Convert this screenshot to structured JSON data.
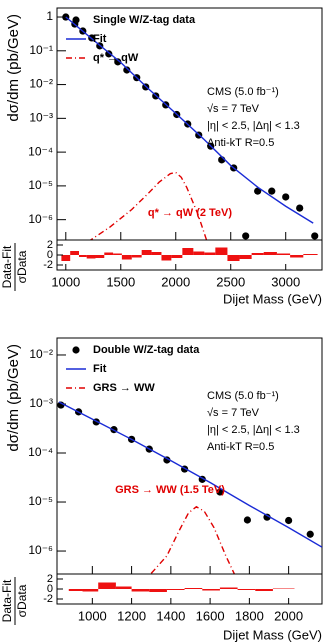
{
  "chart_data": [
    {
      "type": "scatter",
      "log_y": true,
      "ylabel": "dσ/dm (pb/GeV)",
      "xlim": [
        920,
        3330
      ],
      "xticks": [
        1000,
        1500,
        2000,
        2500,
        3000
      ],
      "ylim": [
        2.5e-07,
        1.85
      ],
      "yticks": [
        {
          "value": 1e-06,
          "label": "10⁻⁶"
        },
        {
          "value": 1e-05,
          "label": "10⁻⁵"
        },
        {
          "value": 0.0001,
          "label": "10⁻⁴"
        },
        {
          "value": 0.001,
          "label": "10⁻³"
        },
        {
          "value": 0.01,
          "label": "10⁻²"
        },
        {
          "value": 0.1,
          "label": "10⁻¹"
        },
        1
      ],
      "series": [
        {
          "name": "Single W/Z-tag data",
          "color": "#000000",
          "style": "markers",
          "x": [
            1000,
            1082,
            1155,
            1236,
            1309,
            1391,
            1473,
            1555,
            1645,
            1727,
            1818,
            1909,
            2009,
            2109,
            2209,
            2318,
            2418,
            2527,
            2636,
            2745,
            2873,
            3000,
            3127,
            3264
          ],
          "values": [
            1,
            0.62,
            0.385,
            0.24,
            0.14,
            0.081,
            0.047,
            0.027,
            0.016,
            0.0085,
            0.0046,
            0.0025,
            0.0013,
            0.00068,
            0.00032,
            0.00015,
            5.9e-05,
            3.4e-05,
            3.3e-07,
            7e-06,
            7e-06,
            4.7e-06,
            2.2e-06,
            3.3e-07
          ]
        },
        {
          "name": "Fit",
          "color": "#1a2bd6",
          "style": "solid",
          "x": [
            1000,
            1250,
            1500,
            1750,
            2000,
            2250,
            2500,
            2750,
            3000,
            3250
          ],
          "values": [
            1,
            0.21,
            0.045,
            0.0076,
            0.0014,
            0.00025,
            4e-05,
            8.9e-06,
            2.5e-06,
            7.9e-07
          ]
        },
        {
          "name": "q* → qW",
          "color": "#e00000",
          "style": "dashdot",
          "x": [
            1200,
            1400,
            1600,
            1750,
            1850,
            1950,
            2000,
            2050,
            2100,
            2200,
            2280
          ],
          "values": [
            2.2e-07,
            6e-07,
            2e-06,
            6e-06,
            1.3e-05,
            2.3e-05,
            2.5e-05,
            1.8e-05,
            9e-06,
            1.5e-06,
            2.5e-07
          ]
        }
      ],
      "annotations": [
        "CMS (5.0 fb⁻¹)",
        "√s = 7 TeV",
        "|η| < 2.5, |Δη| < 1.3",
        "Anti-kT R=0.5"
      ],
      "signal_label": "q* → qW (2 TeV)"
    },
    {
      "type": "histogram",
      "ylabel_numerator": "Data-Fit",
      "ylabel_denominator": "σData",
      "xlabel": "Dijet Mass (GeV)",
      "xlim": [
        920,
        3330
      ],
      "xticks": [
        1000,
        1500,
        2000,
        2500,
        3000
      ],
      "ylim": [
        -3,
        3
      ],
      "yticks": [
        -2,
        0,
        2
      ],
      "color": "#ee1111",
      "bins": [
        960,
        1040,
        1120,
        1190,
        1270,
        1350,
        1430,
        1510,
        1600,
        1690,
        1780,
        1870,
        1960,
        2060,
        2160,
        2260,
        2360,
        2470,
        2580,
        2690,
        2800,
        2920,
        3040,
        3160,
        3290
      ],
      "values": [
        -1.2,
        0.8,
        -0.4,
        -0.7,
        -0.6,
        0.5,
        0.3,
        -0.9,
        -0.5,
        1.0,
        0.6,
        -1.1,
        -0.6,
        1.4,
        0.7,
        0.5,
        1.5,
        -1.2,
        -0.8,
        0.4,
        0.6,
        0.3,
        -0.5,
        0.2
      ]
    },
    {
      "type": "scatter",
      "log_y": true,
      "ylabel": "dσ/dm (pb/GeV)",
      "xlim": [
        820,
        2170
      ],
      "xticks": [
        1000,
        1200,
        1400,
        1600,
        1800,
        2000
      ],
      "ylim": [
        3.4e-07,
        0.0222
      ],
      "yticks": [
        {
          "value": 1e-06,
          "label": "10⁻⁶"
        },
        {
          "value": 1e-05,
          "label": "10⁻⁵"
        },
        {
          "value": 0.0001,
          "label": "10⁻⁴"
        },
        {
          "value": 0.001,
          "label": "10⁻³"
        },
        {
          "value": 0.01,
          "label": "10⁻²"
        }
      ],
      "series": [
        {
          "name": "Double W/Z-tag data",
          "color": "#000000",
          "style": "markers",
          "x": [
            840,
            930,
            1020,
            1110,
            1200,
            1290,
            1380,
            1470,
            1560,
            1650,
            1790,
            1890,
            2000,
            2110
          ],
          "values": [
            0.00095,
            0.00069,
            0.00043,
            0.0003,
            0.00019,
            0.00012,
            7.2e-05,
            4.7e-05,
            2.9e-05,
            1.6e-05,
            4.3e-06,
            4.9e-06,
            4.2e-06,
            2.2e-06
          ]
        },
        {
          "name": "Fit",
          "color": "#1a2bd6",
          "style": "solid",
          "x": [
            830,
            1000,
            1200,
            1400,
            1600,
            1800,
            2000,
            2170
          ],
          "values": [
            0.0011,
            0.00049,
            0.00019,
            7e-05,
            2.5e-05,
            8.5e-06,
            3e-06,
            1.2e-06
          ]
        },
        {
          "name": "GRS → WW",
          "color": "#e00000",
          "style": "dashdot",
          "x": [
            1300,
            1380,
            1440,
            1490,
            1530,
            1570,
            1620,
            1680,
            1730
          ],
          "values": [
            3.5e-07,
            8e-07,
            2.5e-06,
            6e-06,
            8e-06,
            6.5e-06,
            3e-06,
            8e-07,
            3e-07
          ]
        }
      ],
      "annotations": [
        "CMS (5.0 fb⁻¹)",
        "√s = 7 TeV",
        "|η| < 2.5, |Δη| < 1.3",
        "Anti-kT R=0.5"
      ],
      "signal_label": "GRS → WW (1.5 TeV)"
    },
    {
      "type": "histogram",
      "ylabel_numerator": "Data-Fit",
      "ylabel_denominator": "σData",
      "xlabel": "Dijet Mass (GeV)",
      "xlim": [
        820,
        2170
      ],
      "xticks": [
        1000,
        1200,
        1400,
        1600,
        1800,
        2000
      ],
      "ylim": [
        -3,
        3
      ],
      "yticks": [
        -2,
        0,
        2
      ],
      "color": "#ee1111",
      "bins": [
        880,
        950,
        1030,
        1120,
        1200,
        1290,
        1380,
        1470,
        1560,
        1650,
        1740,
        1830,
        1920,
        2030
      ],
      "values": [
        -0.4,
        -0.5,
        1.3,
        0.5,
        -0.5,
        -0.6,
        -0.2,
        0.2,
        -0.3,
        0.3,
        -0.2,
        -0.4,
        0.1
      ]
    }
  ]
}
